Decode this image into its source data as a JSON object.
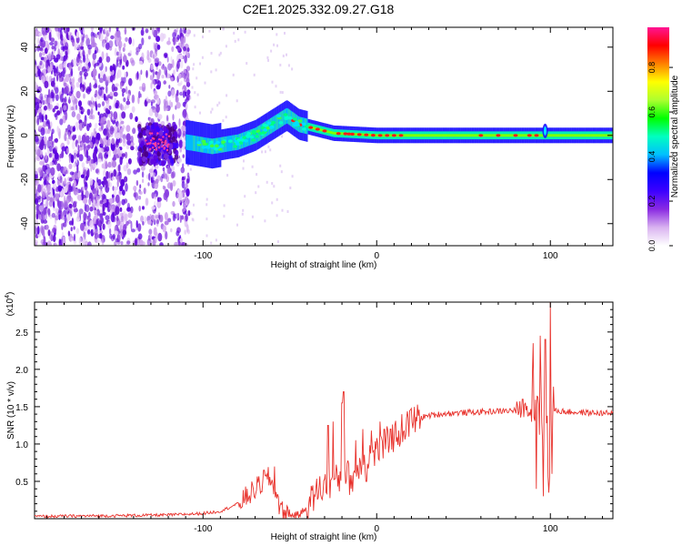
{
  "figure": {
    "title": "C2E1.2025.332.09.27.G18"
  },
  "chart_data": [
    {
      "type": "heatmap",
      "title": "",
      "xlabel": "Height of straight line (km)",
      "ylabel": "Frequency (Hz)",
      "xlim": [
        -197,
        136
      ],
      "ylim": [
        -50,
        49
      ],
      "xticks": [
        -100,
        0,
        100
      ],
      "xtick_labels": [
        "-100",
        "0",
        "100"
      ],
      "yticks": [
        -40,
        -20,
        0,
        20,
        40
      ],
      "ytick_labels": [
        "-40",
        "-20",
        "0",
        "20",
        "40"
      ],
      "colorbar": {
        "label": "Normalized spectral amplitude",
        "range": [
          0.0,
          0.98
        ],
        "ticks": [
          0.0,
          0.2,
          0.4,
          0.6,
          0.8
        ],
        "tick_labels": [
          "0.0",
          "0.2",
          "0.4",
          "0.6",
          "0.8"
        ],
        "colormap": [
          "#ffffff",
          "#d9b3f0",
          "#8a2be2",
          "#3d00ff",
          "#0000ff",
          "#00bfff",
          "#00ffc0",
          "#00ff00",
          "#adff2f",
          "#ffff00",
          "#ff8000",
          "#ff0000",
          "#ff1493"
        ]
      },
      "features": {
        "noise_region_km": [
          -197,
          -108
        ],
        "noise_density": [
          0.55,
          0.7,
          0.6,
          0.35
        ],
        "blob_center_km": -125,
        "ridge": [
          [
            -110,
            -3
          ],
          [
            -95,
            -5
          ],
          [
            -80,
            -3
          ],
          [
            -70,
            0
          ],
          [
            -60,
            5
          ],
          [
            -52,
            9
          ],
          [
            -45,
            5
          ],
          [
            -35,
            3
          ],
          [
            -25,
            1
          ],
          [
            0,
            0
          ],
          [
            136,
            0
          ]
        ],
        "spike_km": 97
      }
    },
    {
      "type": "line",
      "title": "",
      "xlabel": "Height of straight line (km)",
      "ylabel": "SNR (10 * v/v)",
      "y_scale_label": "(x10^4)",
      "xlim": [
        -197,
        136
      ],
      "ylim": [
        0,
        2.9
      ],
      "xticks": [
        -100,
        0,
        100
      ],
      "xtick_labels": [
        "-100",
        "0",
        "100"
      ],
      "yticks": [
        0.5,
        1.0,
        1.5,
        2.0,
        2.5
      ],
      "ytick_labels": [
        "0.5",
        "1.0",
        "1.5",
        "2.0",
        "2.5"
      ],
      "color": "#e8322c",
      "series": [
        {
          "name": "SNR",
          "x": [
            -197,
            -150,
            -120,
            -100,
            -90,
            -80,
            -72,
            -65,
            -62,
            -58,
            -55,
            -50,
            -45,
            -40,
            -35,
            -30,
            -25,
            -20,
            -18,
            -15,
            -10,
            -5,
            0,
            5,
            10,
            15,
            20,
            25,
            30,
            40,
            50,
            60,
            70,
            80,
            85,
            88,
            92,
            95,
            97,
            98,
            100,
            102,
            110,
            120,
            136
          ],
          "values": [
            0.03,
            0.04,
            0.05,
            0.07,
            0.1,
            0.2,
            0.35,
            0.5,
            0.55,
            0.35,
            0.1,
            0.05,
            0.05,
            0.15,
            0.35,
            0.45,
            0.5,
            0.55,
            0.65,
            0.5,
            0.7,
            0.85,
            0.9,
            1.0,
            1.1,
            1.2,
            1.3,
            1.35,
            1.38,
            1.41,
            1.42,
            1.43,
            1.44,
            1.45,
            1.48,
            1.5,
            1.7,
            1.4,
            2.0,
            1.2,
            1.0,
            1.45,
            1.43,
            1.42,
            1.41
          ]
        }
      ],
      "spikes": [
        [
          -65,
          0.65
        ],
        [
          -59,
          0.7
        ],
        [
          -20,
          1.55
        ],
        [
          -19,
          1.7
        ],
        [
          -25,
          1.3
        ],
        [
          -28,
          1.25
        ],
        [
          -12,
          1.05
        ],
        [
          -8,
          1.2
        ],
        [
          -6,
          0.5
        ],
        [
          -3,
          1.18
        ],
        [
          2,
          1.3
        ],
        [
          8,
          1.2
        ],
        [
          18,
          1.35
        ],
        [
          84,
          1.6
        ],
        [
          90,
          2.35
        ],
        [
          92,
          0.4
        ],
        [
          94,
          2.45
        ],
        [
          96,
          0.3
        ],
        [
          97,
          2.4
        ],
        [
          99,
          0.35
        ],
        [
          100,
          2.9
        ],
        [
          101,
          0.6
        ]
      ]
    }
  ]
}
